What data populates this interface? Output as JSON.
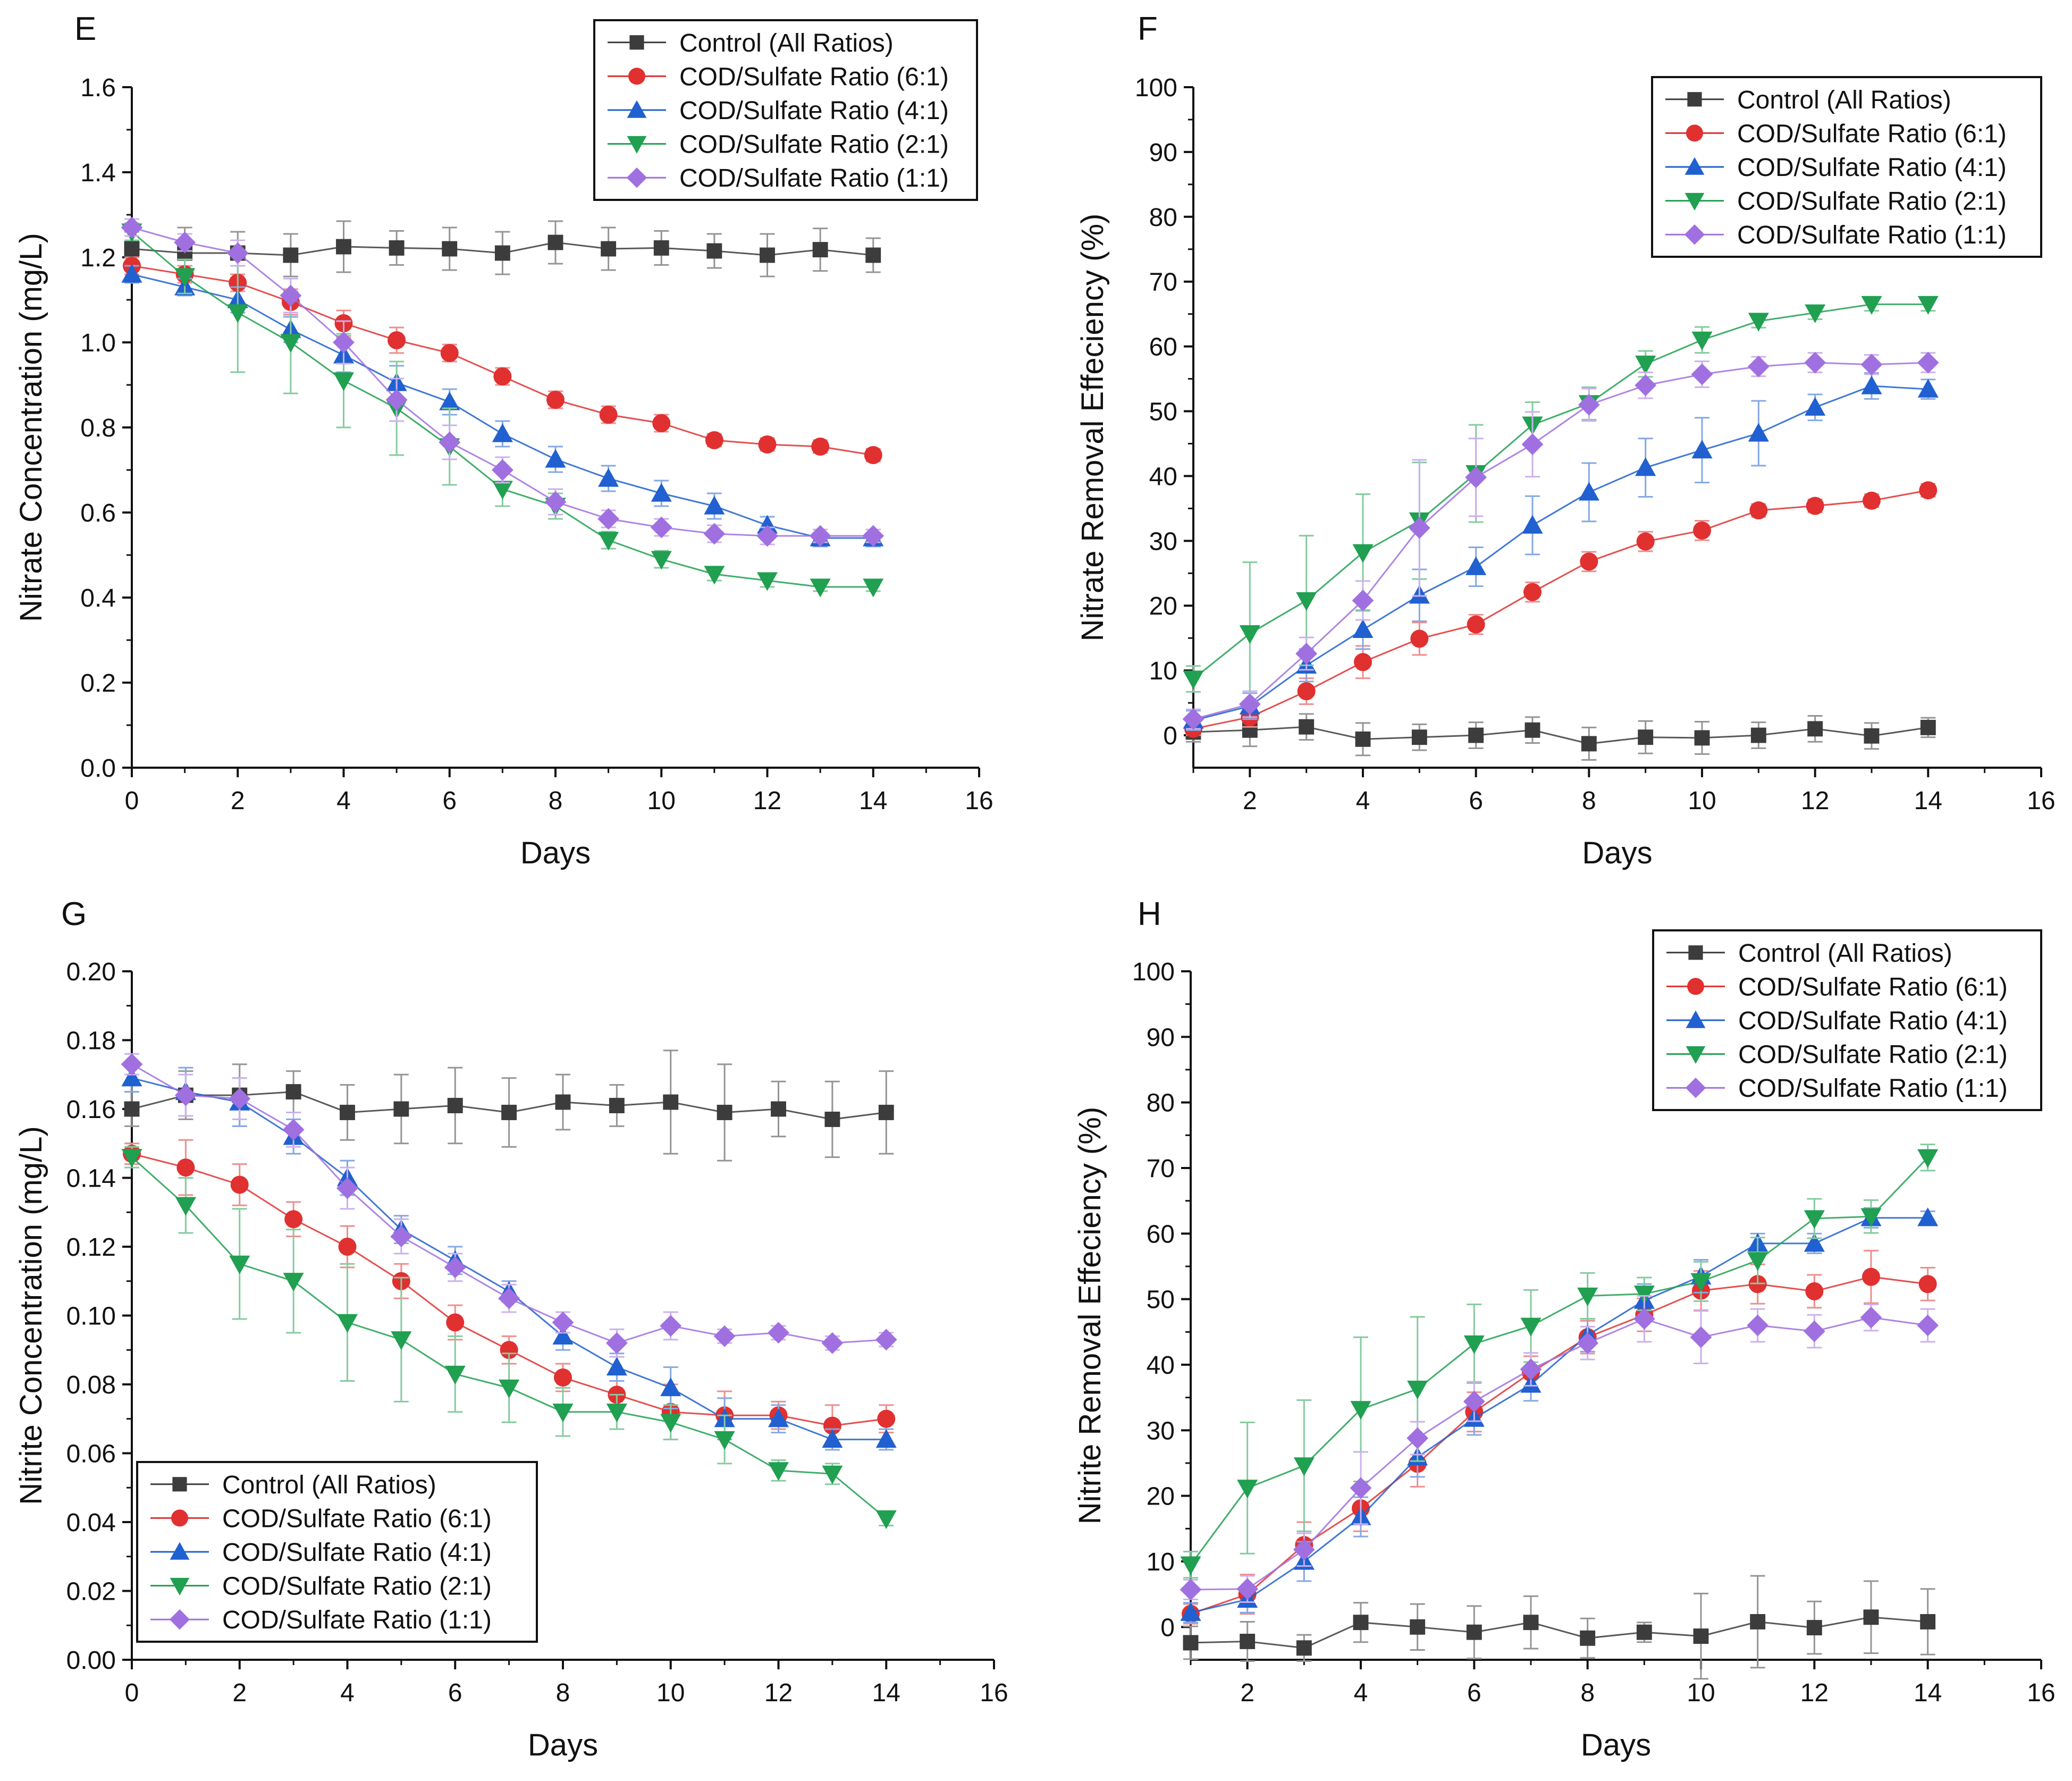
{
  "figure": {
    "description_hidden": false
  },
  "chart_data": [
    {
      "id": "E",
      "panel_label": "E",
      "type": "line",
      "xlabel": "Days",
      "ylabel": "Nitrate Concentration (mg/L)",
      "xlim": [
        0,
        16
      ],
      "ylim": [
        0,
        1.6
      ],
      "xticks": [
        "0",
        "2",
        "4",
        "6",
        "8",
        "10",
        "12",
        "14",
        "16"
      ],
      "yticks": [
        "0.0",
        "0.2",
        "0.4",
        "0.6",
        "0.8",
        "1.0",
        "1.2",
        "1.4",
        "1.6"
      ],
      "x": [
        0,
        1,
        2,
        3,
        4,
        5,
        6,
        7,
        8,
        9,
        10,
        11,
        12,
        13,
        14
      ],
      "legend_position": "top-right",
      "series": [
        {
          "name": "Control (All Ratios)",
          "color": "#3c3c3c",
          "marker": "square",
          "values": [
            1.22,
            1.21,
            1.21,
            1.205,
            1.225,
            1.222,
            1.22,
            1.21,
            1.235,
            1.22,
            1.222,
            1.215,
            1.205,
            1.218,
            1.205
          ],
          "errors": [
            0.04,
            0.06,
            0.05,
            0.05,
            0.06,
            0.04,
            0.05,
            0.05,
            0.05,
            0.05,
            0.04,
            0.04,
            0.05,
            0.05,
            0.04
          ]
        },
        {
          "name": "COD/Sulfate Ratio (6:1)",
          "color": "#e03030",
          "marker": "circle",
          "values": [
            1.18,
            1.16,
            1.14,
            1.095,
            1.045,
            1.005,
            0.975,
            0.92,
            0.865,
            0.83,
            0.81,
            0.77,
            0.76,
            0.755,
            0.735
          ],
          "errors": [
            0.02,
            0.02,
            0.02,
            0.03,
            0.03,
            0.03,
            0.02,
            0.02,
            0.02,
            0.02,
            0.02,
            0.015,
            0.015,
            0.015,
            0.015
          ]
        },
        {
          "name": "COD/Sulfate Ratio (4:1)",
          "color": "#2060d0",
          "marker": "triangle-up",
          "values": [
            1.16,
            1.13,
            1.1,
            1.03,
            0.97,
            0.905,
            0.86,
            0.785,
            0.725,
            0.68,
            0.645,
            0.615,
            0.57,
            0.54,
            0.54
          ],
          "errors": [
            0.02,
            0.02,
            0.03,
            0.03,
            0.04,
            0.04,
            0.03,
            0.03,
            0.03,
            0.03,
            0.03,
            0.03,
            0.02,
            0.02,
            0.02
          ]
        },
        {
          "name": "COD/Sulfate Ratio (2:1)",
          "color": "#20a050",
          "marker": "triangle-down",
          "values": [
            1.26,
            1.155,
            1.07,
            1.0,
            0.91,
            0.845,
            0.755,
            0.655,
            0.615,
            0.535,
            0.49,
            0.455,
            0.44,
            0.425,
            0.425
          ],
          "errors": [
            0.02,
            0.04,
            0.14,
            0.12,
            0.11,
            0.11,
            0.09,
            0.04,
            0.03,
            0.02,
            0.02,
            0.015,
            0.015,
            0.01,
            0.01
          ]
        },
        {
          "name": "COD/Sulfate Ratio (1:1)",
          "color": "#a070e0",
          "marker": "diamond",
          "values": [
            1.27,
            1.235,
            1.21,
            1.11,
            1.0,
            0.865,
            0.765,
            0.7,
            0.625,
            0.585,
            0.565,
            0.55,
            0.545,
            0.545,
            0.545
          ],
          "errors": [
            0.02,
            0.02,
            0.03,
            0.04,
            0.05,
            0.05,
            0.04,
            0.03,
            0.03,
            0.02,
            0.02,
            0.02,
            0.02,
            0.015,
            0.015
          ]
        }
      ]
    },
    {
      "id": "F",
      "panel_label": "F",
      "type": "line",
      "xlabel": "Days",
      "ylabel": "Nitrate Removal Effeciency (%)",
      "xlim": [
        1,
        16
      ],
      "ylim": [
        -5,
        100
      ],
      "xticks": [
        "2",
        "4",
        "6",
        "8",
        "10",
        "12",
        "14",
        "16"
      ],
      "yticks": [
        "0",
        "10",
        "20",
        "30",
        "40",
        "50",
        "60",
        "70",
        "80",
        "90",
        "100"
      ],
      "x": [
        1,
        2,
        3,
        4,
        5,
        6,
        7,
        8,
        9,
        10,
        11,
        12,
        13,
        14
      ],
      "legend_position": "top-right",
      "series": [
        {
          "name": "Control (All Ratios)",
          "color": "#3c3c3c",
          "marker": "square",
          "values": [
            0.5,
            0.8,
            1.3,
            -0.6,
            -0.3,
            0.0,
            0.8,
            -1.3,
            -0.3,
            -0.4,
            0.0,
            1.0,
            -0.1,
            1.2
          ],
          "errors": [
            1.5,
            2.5,
            2.0,
            2.5,
            2.0,
            2.0,
            2.0,
            2.5,
            2.5,
            2.5,
            2.0,
            2.0,
            2.0,
            1.5
          ]
        },
        {
          "name": "COD/Sulfate Ratio (6:1)",
          "color": "#e03030",
          "marker": "circle",
          "values": [
            1.0,
            2.8,
            6.8,
            11.3,
            14.9,
            17.1,
            22.1,
            26.8,
            29.9,
            31.6,
            34.7,
            35.4,
            36.2,
            37.8
          ],
          "errors": [
            1.0,
            1.5,
            2.0,
            2.5,
            2.5,
            1.5,
            1.5,
            1.5,
            1.5,
            1.5,
            1.0,
            1.0,
            1.0,
            1.0
          ]
        },
        {
          "name": "COD/Sulfate Ratio (4:1)",
          "color": "#2060d0",
          "marker": "triangle-up",
          "values": [
            2.3,
            4.5,
            10.8,
            16.3,
            21.6,
            26.0,
            32.4,
            37.5,
            41.3,
            44.0,
            46.6,
            50.6,
            53.9,
            53.4
          ],
          "errors": [
            1.5,
            2.0,
            2.5,
            3.0,
            4.0,
            3.0,
            4.5,
            4.5,
            4.5,
            5.0,
            5.0,
            2.0,
            2.0,
            1.5
          ]
        },
        {
          "name": "COD/Sulfate Ratio (2:1)",
          "color": "#20a050",
          "marker": "triangle-down",
          "values": [
            8.7,
            15.7,
            20.8,
            28.2,
            33.1,
            40.4,
            47.9,
            51.2,
            57.3,
            61.0,
            63.9,
            65.2,
            66.5,
            66.5
          ],
          "errors": [
            2.0,
            11.0,
            10.0,
            9.0,
            9.0,
            7.5,
            3.5,
            2.5,
            2.0,
            2.0,
            1.0,
            1.0,
            1.0,
            1.0
          ]
        },
        {
          "name": "COD/Sulfate Ratio (1:1)",
          "color": "#a070e0",
          "marker": "diamond",
          "values": [
            2.5,
            4.8,
            12.6,
            20.8,
            32.0,
            39.8,
            44.9,
            51.0,
            54.0,
            55.7,
            56.9,
            57.5,
            57.2,
            57.5
          ],
          "errors": [
            1.5,
            2.0,
            2.5,
            3.0,
            10.5,
            6.0,
            5.0,
            2.5,
            2.0,
            2.0,
            1.5,
            1.5,
            1.5,
            1.5
          ]
        }
      ]
    },
    {
      "id": "G",
      "panel_label": "G",
      "type": "line",
      "xlabel": "Days",
      "ylabel": "Nitrite Concentration (mg/L)",
      "xlim": [
        0,
        16
      ],
      "ylim": [
        0,
        0.2
      ],
      "xticks": [
        "0",
        "2",
        "4",
        "6",
        "8",
        "10",
        "12",
        "14",
        "16"
      ],
      "yticks": [
        "0.00",
        "0.02",
        "0.04",
        "0.06",
        "0.08",
        "0.10",
        "0.12",
        "0.14",
        "0.16",
        "0.18",
        "0.20"
      ],
      "x": [
        0,
        1,
        2,
        3,
        4,
        5,
        6,
        7,
        8,
        9,
        10,
        11,
        12,
        13,
        14
      ],
      "legend_position": "bottom-left",
      "series": [
        {
          "name": "Control (All Ratios)",
          "color": "#3c3c3c",
          "marker": "square",
          "values": [
            0.16,
            0.164,
            0.164,
            0.165,
            0.159,
            0.16,
            0.161,
            0.159,
            0.162,
            0.161,
            0.162,
            0.159,
            0.16,
            0.157,
            0.159
          ],
          "errors": [
            0.005,
            0.007,
            0.009,
            0.006,
            0.008,
            0.01,
            0.011,
            0.01,
            0.008,
            0.006,
            0.015,
            0.014,
            0.008,
            0.011,
            0.012
          ]
        },
        {
          "name": "COD/Sulfate Ratio (6:1)",
          "color": "#e03030",
          "marker": "circle",
          "values": [
            0.147,
            0.143,
            0.138,
            0.128,
            0.12,
            0.11,
            0.098,
            0.09,
            0.082,
            0.077,
            0.072,
            0.071,
            0.071,
            0.068,
            0.07
          ],
          "errors": [
            0.003,
            0.008,
            0.006,
            0.005,
            0.006,
            0.005,
            0.005,
            0.004,
            0.004,
            0.004,
            0.008,
            0.007,
            0.004,
            0.006,
            0.004
          ]
        },
        {
          "name": "COD/Sulfate Ratio (4:1)",
          "color": "#2060d0",
          "marker": "triangle-up",
          "values": [
            0.169,
            0.165,
            0.162,
            0.152,
            0.14,
            0.125,
            0.116,
            0.107,
            0.094,
            0.085,
            0.079,
            0.07,
            0.07,
            0.064,
            0.064
          ],
          "errors": [
            0.004,
            0.007,
            0.007,
            0.005,
            0.005,
            0.004,
            0.004,
            0.003,
            0.004,
            0.004,
            0.006,
            0.006,
            0.004,
            0.003,
            0.003
          ]
        },
        {
          "name": "COD/Sulfate Ratio (2:1)",
          "color": "#20a050",
          "marker": "triangle-down",
          "values": [
            0.146,
            0.132,
            0.115,
            0.11,
            0.098,
            0.093,
            0.083,
            0.079,
            0.072,
            0.072,
            0.069,
            0.064,
            0.055,
            0.054,
            0.041
          ],
          "errors": [
            0.003,
            0.008,
            0.016,
            0.015,
            0.017,
            0.018,
            0.011,
            0.01,
            0.007,
            0.005,
            0.005,
            0.007,
            0.003,
            0.003,
            0.002
          ]
        },
        {
          "name": "COD/Sulfate Ratio (1:1)",
          "color": "#a070e0",
          "marker": "diamond",
          "values": [
            0.173,
            0.164,
            0.163,
            0.154,
            0.137,
            0.123,
            0.114,
            0.105,
            0.098,
            0.092,
            0.097,
            0.094,
            0.095,
            0.092,
            0.093
          ],
          "errors": [
            0.003,
            0.006,
            0.006,
            0.005,
            0.006,
            0.005,
            0.004,
            0.004,
            0.003,
            0.004,
            0.004,
            0.002,
            0.002,
            0.002,
            0.002
          ]
        }
      ]
    },
    {
      "id": "H",
      "panel_label": "H",
      "type": "line",
      "xlabel": "Days",
      "ylabel": "Nitrite Removal Effeciency (%)",
      "xlim": [
        1,
        16
      ],
      "ylim": [
        -5,
        100
      ],
      "xticks": [
        "2",
        "4",
        "6",
        "8",
        "10",
        "12",
        "14",
        "16"
      ],
      "yticks": [
        "0",
        "10",
        "20",
        "30",
        "40",
        "50",
        "60",
        "70",
        "80",
        "90",
        "100"
      ],
      "x": [
        1,
        2,
        3,
        4,
        5,
        6,
        7,
        8,
        9,
        10,
        11,
        12,
        13,
        14
      ],
      "legend_position": "top-right",
      "series": [
        {
          "name": "Control (All Ratios)",
          "color": "#3c3c3c",
          "marker": "square",
          "values": [
            -2.4,
            -2.2,
            -3.2,
            0.7,
            0.0,
            -0.8,
            0.7,
            -1.7,
            -0.8,
            -1.4,
            0.8,
            -0.1,
            1.5,
            0.8
          ],
          "errors": [
            2.5,
            3.0,
            2.0,
            3.0,
            3.5,
            4.0,
            4.0,
            3.0,
            1.5,
            6.5,
            7.0,
            4.0,
            5.5,
            5.0
          ]
        },
        {
          "name": "COD/Sulfate Ratio (6:1)",
          "color": "#e03030",
          "marker": "circle",
          "values": [
            2.0,
            5.0,
            12.5,
            18.1,
            24.9,
            32.8,
            38.8,
            44.2,
            47.6,
            51.3,
            52.3,
            51.2,
            53.4,
            52.3
          ],
          "errors": [
            1.5,
            3.0,
            3.5,
            3.5,
            3.5,
            3.0,
            2.5,
            2.5,
            2.5,
            3.0,
            3.0,
            2.5,
            4.0,
            2.5
          ]
        },
        {
          "name": "COD/Sulfate Ratio (4:1)",
          "color": "#2060d0",
          "marker": "triangle-up",
          "values": [
            2.2,
            4.2,
            10.0,
            16.8,
            25.9,
            31.8,
            37.0,
            44.5,
            49.8,
            53.5,
            58.5,
            58.5,
            62.4,
            62.4
          ],
          "errors": [
            1.5,
            2.0,
            3.0,
            3.0,
            3.0,
            2.5,
            2.5,
            2.5,
            2.5,
            2.5,
            1.5,
            1.5,
            1.5,
            1.0
          ]
        },
        {
          "name": "COD/Sulfate Ratio (2:1)",
          "color": "#20a050",
          "marker": "triangle-down",
          "values": [
            9.5,
            21.2,
            24.6,
            33.2,
            36.3,
            43.2,
            45.9,
            50.5,
            50.8,
            52.7,
            55.9,
            62.3,
            62.6,
            71.6
          ],
          "errors": [
            2.0,
            10.0,
            10.0,
            11.0,
            11.0,
            6.0,
            5.5,
            3.5,
            2.5,
            3.0,
            3.5,
            3.0,
            2.5,
            2.0
          ]
        },
        {
          "name": "COD/Sulfate Ratio (1:1)",
          "color": "#a070e0",
          "marker": "diamond",
          "values": [
            5.7,
            5.8,
            11.8,
            21.2,
            28.8,
            34.4,
            39.3,
            43.3,
            47.0,
            44.2,
            46.0,
            45.1,
            47.2,
            46.0
          ],
          "errors": [
            1.5,
            2.0,
            2.5,
            5.5,
            2.5,
            3.0,
            2.5,
            2.5,
            3.5,
            4.0,
            2.5,
            2.5,
            2.0,
            2.5
          ]
        }
      ]
    }
  ]
}
